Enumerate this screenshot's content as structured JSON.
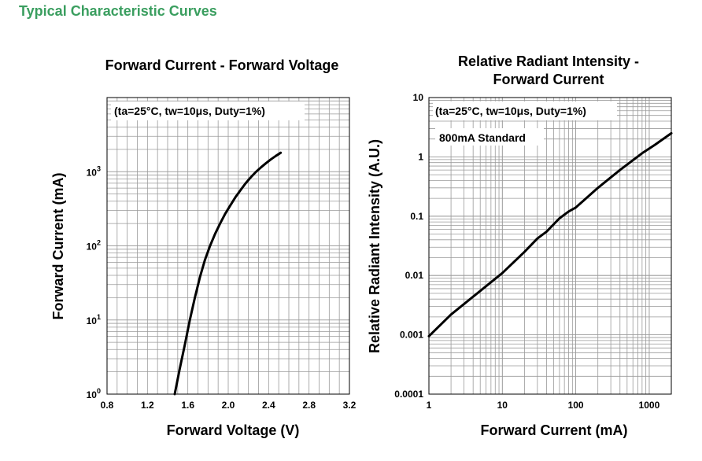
{
  "page": {
    "heading": "Typical Characteristic Curves"
  },
  "chart_data": [
    {
      "type": "line",
      "title": "Forward Current - Forward Voltage",
      "xlabel": "Forward Voltage (V)",
      "ylabel": "Forward Current (mA)",
      "xlim": [
        0.8,
        3.2
      ],
      "ylim": [
        1,
        10000
      ],
      "yscale": "log",
      "grid": true,
      "annotation": "(ta=25°C, tw=10μs, Duty=1%)",
      "x_ticks": [
        "0.8",
        "1.2",
        "1.6",
        "2.0",
        "2.4",
        "2.8",
        "3.2"
      ],
      "y_ticks": [
        {
          "base": "10",
          "exp": "0"
        },
        {
          "base": "10",
          "exp": "1"
        },
        {
          "base": "10",
          "exp": "2"
        },
        {
          "base": "10",
          "exp": "3"
        }
      ],
      "series": [
        {
          "x": [
            1.47,
            1.52,
            1.57,
            1.62,
            1.67,
            1.72,
            1.77,
            1.82,
            1.87,
            1.92,
            1.97,
            2.02,
            2.07,
            2.12,
            2.17,
            2.22,
            2.27,
            2.32,
            2.37,
            2.42,
            2.47,
            2.52
          ],
          "y": [
            1,
            2.2,
            4.6,
            10,
            20,
            38,
            65,
            100,
            145,
            200,
            270,
            350,
            450,
            560,
            690,
            830,
            980,
            1130,
            1290,
            1460,
            1630,
            1800
          ]
        }
      ]
    },
    {
      "type": "line",
      "title": [
        "Relative Radiant Intensity -",
        "Forward Current"
      ],
      "xlabel": "Forward Current (mA)",
      "ylabel": "Relative Radiant Intensity (A.U.)",
      "xlim": [
        1,
        2000
      ],
      "ylim": [
        0.0001,
        10
      ],
      "xscale": "log",
      "yscale": "log",
      "grid": true,
      "annotations": [
        "(ta=25°C, tw=10μs, Duty=1%)",
        "800mA Standard"
      ],
      "x_ticks": [
        "1",
        "10",
        "100",
        "1000"
      ],
      "y_ticks": [
        "0.0001",
        "0.001",
        "0.01",
        "0.1",
        "1",
        "10"
      ],
      "series": [
        {
          "x": [
            1,
            2,
            5,
            10,
            20,
            30,
            40,
            60,
            80,
            100,
            200,
            400,
            800,
            1200,
            2000
          ],
          "y": [
            0.00095,
            0.0022,
            0.0055,
            0.011,
            0.025,
            0.042,
            0.055,
            0.092,
            0.12,
            0.14,
            0.3,
            0.6,
            1.15,
            1.6,
            2.5
          ]
        }
      ]
    }
  ]
}
